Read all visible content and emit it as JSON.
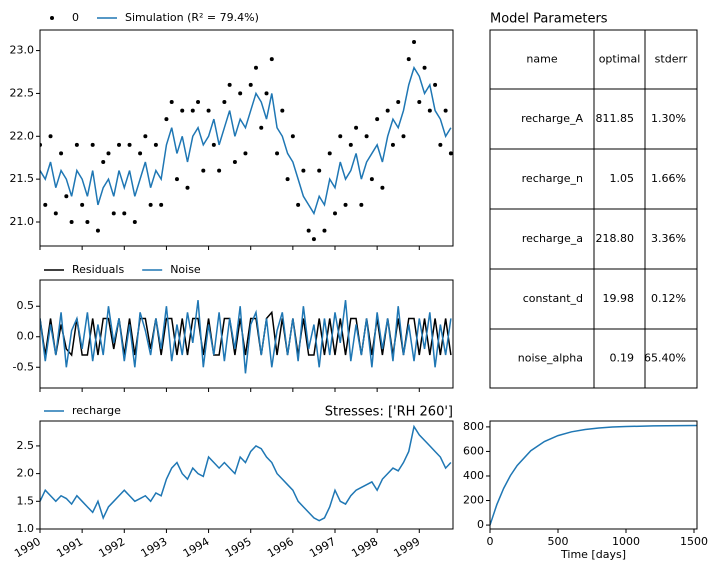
{
  "chart_data": [
    {
      "type": "line",
      "x": [
        1990,
        1990.125,
        1990.25,
        1990.375,
        1990.5,
        1990.625,
        1990.75,
        1990.875,
        1991,
        1991.125,
        1991.25,
        1991.375,
        1991.5,
        1991.625,
        1991.75,
        1991.875,
        1992,
        1992.125,
        1992.25,
        1992.375,
        1992.5,
        1992.625,
        1992.75,
        1992.875,
        1993,
        1993.125,
        1993.25,
        1993.375,
        1993.5,
        1993.625,
        1993.75,
        1993.875,
        1994,
        1994.125,
        1994.25,
        1994.375,
        1994.5,
        1994.625,
        1994.75,
        1994.875,
        1995,
        1995.125,
        1995.25,
        1995.375,
        1995.5,
        1995.625,
        1995.75,
        1995.875,
        1996,
        1996.125,
        1996.25,
        1996.375,
        1996.5,
        1996.625,
        1996.75,
        1996.875,
        1997,
        1997.125,
        1997.25,
        1997.375,
        1997.5,
        1997.625,
        1997.75,
        1997.875,
        1998,
        1998.125,
        1998.25,
        1998.375,
        1998.5,
        1998.625,
        1998.75,
        1998.875,
        1999,
        1999.125,
        1999.25,
        1999.375,
        1999.5,
        1999.625,
        1999.75
      ],
      "xlim": [
        1990,
        1999.8
      ],
      "ylim": [
        20.72,
        23.24
      ],
      "yticks": [
        {
          "value": 21,
          "label": "21.0"
        },
        21.5,
        {
          "value": 22,
          "label": "22.0"
        },
        22.5,
        {
          "value": 23,
          "label": "23.0"
        }
      ],
      "series": [
        {
          "name": "0",
          "color": "#000000",
          "style": "points",
          "values": [
            21.9,
            21.2,
            22.0,
            21.1,
            21.8,
            21.3,
            21.0,
            21.9,
            21.2,
            21.0,
            21.9,
            20.9,
            21.7,
            21.8,
            21.1,
            21.9,
            21.1,
            21.9,
            21.0,
            21.8,
            22.0,
            21.2,
            21.9,
            21.2,
            22.2,
            22.4,
            21.5,
            22.3,
            21.4,
            22.3,
            22.4,
            21.6,
            22.3,
            21.9,
            21.6,
            22.4,
            22.6,
            21.7,
            22.5,
            21.8,
            22.6,
            22.8,
            22.1,
            22.5,
            22.9,
            21.8,
            22.3,
            21.5,
            22.0,
            21.2,
            21.6,
            20.9,
            20.8,
            21.6,
            20.9,
            21.8,
            21.1,
            22.0,
            21.2,
            21.9,
            22.1,
            21.2,
            22.0,
            21.5,
            22.2,
            21.4,
            22.3,
            21.9,
            22.4,
            22.0,
            22.9,
            23.1,
            22.4,
            22.8,
            22.3,
            22.6,
            21.9,
            22.3,
            21.8
          ]
        },
        {
          "name": "Simulation (R² = 79.4%)",
          "color": "#1f77b4",
          "style": "line",
          "values": [
            21.6,
            21.5,
            21.7,
            21.4,
            21.6,
            21.5,
            21.3,
            21.6,
            21.5,
            21.3,
            21.6,
            21.2,
            21.4,
            21.5,
            21.3,
            21.6,
            21.4,
            21.6,
            21.3,
            21.5,
            21.7,
            21.4,
            21.6,
            21.5,
            21.9,
            22.1,
            21.8,
            22.0,
            21.7,
            22.0,
            22.1,
            21.9,
            22.0,
            22.2,
            21.9,
            22.1,
            22.3,
            22.0,
            22.2,
            22.1,
            22.3,
            22.5,
            22.4,
            22.2,
            22.5,
            22.1,
            22.0,
            21.8,
            21.7,
            21.5,
            21.3,
            21.2,
            21.1,
            21.3,
            21.2,
            21.5,
            21.4,
            21.7,
            21.5,
            21.6,
            21.8,
            21.5,
            21.7,
            21.8,
            21.9,
            21.7,
            22.0,
            22.2,
            22.1,
            22.3,
            22.6,
            22.8,
            22.7,
            22.5,
            22.6,
            22.3,
            22.2,
            22.0,
            22.1
          ]
        }
      ]
    },
    {
      "type": "line",
      "x": [
        1990,
        1990.125,
        1990.25,
        1990.375,
        1990.5,
        1990.625,
        1990.75,
        1990.875,
        1991,
        1991.125,
        1991.25,
        1991.375,
        1991.5,
        1991.625,
        1991.75,
        1991.875,
        1992,
        1992.125,
        1992.25,
        1992.375,
        1992.5,
        1992.625,
        1992.75,
        1992.875,
        1993,
        1993.125,
        1993.25,
        1993.375,
        1993.5,
        1993.625,
        1993.75,
        1993.875,
        1994,
        1994.125,
        1994.25,
        1994.375,
        1994.5,
        1994.625,
        1994.75,
        1994.875,
        1995,
        1995.125,
        1995.25,
        1995.375,
        1995.5,
        1995.625,
        1995.75,
        1995.875,
        1996,
        1996.125,
        1996.25,
        1996.375,
        1996.5,
        1996.625,
        1996.75,
        1996.875,
        1997,
        1997.125,
        1997.25,
        1997.375,
        1997.5,
        1997.625,
        1997.75,
        1997.875,
        1998,
        1998.125,
        1998.25,
        1998.375,
        1998.5,
        1998.625,
        1998.75,
        1998.875,
        1999,
        1999.125,
        1999.25,
        1999.375,
        1999.5,
        1999.625,
        1999.75
      ],
      "xlim": [
        1990,
        1999.8
      ],
      "ylim": [
        -0.84,
        0.93
      ],
      "yticks": [
        -0.5,
        {
          "value": 0,
          "label": "0.0"
        },
        0.5
      ],
      "series": [
        {
          "name": "Residuals",
          "color": "#000000",
          "style": "line",
          "values": [
            0.3,
            -0.3,
            0.3,
            -0.3,
            0.2,
            -0.2,
            -0.3,
            0.3,
            -0.3,
            -0.3,
            0.3,
            -0.3,
            0.3,
            0.3,
            -0.2,
            0.3,
            -0.3,
            0.3,
            -0.3,
            0.3,
            0.3,
            -0.2,
            0.3,
            -0.3,
            0.3,
            0.3,
            -0.3,
            0.3,
            -0.3,
            0.3,
            0.3,
            -0.3,
            0.3,
            -0.3,
            -0.3,
            0.3,
            0.3,
            -0.3,
            0.3,
            -0.3,
            0.3,
            0.3,
            -0.3,
            0.3,
            0.4,
            -0.3,
            0.3,
            -0.3,
            0.3,
            -0.3,
            0.3,
            -0.3,
            -0.3,
            0.3,
            -0.3,
            0.3,
            -0.3,
            0.3,
            -0.3,
            0.3,
            0.3,
            -0.3,
            0.3,
            -0.3,
            0.3,
            -0.3,
            0.3,
            -0.3,
            0.3,
            -0.3,
            0.3,
            0.3,
            -0.3,
            0.3,
            -0.3,
            0.3,
            -0.3,
            0.3,
            -0.3
          ]
        },
        {
          "name": "Noise",
          "color": "#1f77b4",
          "style": "line",
          "values": [
            0.3,
            -0.4,
            0.2,
            -0.3,
            0.4,
            -0.5,
            0.1,
            0.3,
            -0.2,
            0.4,
            -0.4,
            0.2,
            -0.3,
            0.5,
            -0.1,
            0.3,
            -0.4,
            0.2,
            -0.5,
            0.4,
            0.1,
            -0.3,
            0.3,
            -0.2,
            0.5,
            -0.4,
            0.2,
            -0.3,
            0.4,
            -0.1,
            0.6,
            -0.5,
            0.2,
            -0.3,
            0.4,
            -0.4,
            0.3,
            -0.2,
            0.5,
            -0.6,
            0.2,
            0.4,
            -0.3,
            0.3,
            -0.5,
            0.1,
            0.4,
            -0.3,
            0.3,
            -0.4,
            0.5,
            -0.2,
            0.2,
            -0.5,
            0.3,
            -0.3,
            0.4,
            -0.1,
            0.6,
            -0.4,
            0.2,
            -0.3,
            0.3,
            -0.5,
            0.4,
            -0.2,
            0.3,
            -0.4,
            0.5,
            -0.3,
            0.2,
            -0.4,
            0.3,
            -0.2,
            0.4,
            -0.5,
            0.2,
            -0.3,
            0.3
          ]
        }
      ]
    },
    {
      "type": "line",
      "title": "Stresses: ['RH 260']",
      "x": [
        1990,
        1990.125,
        1990.25,
        1990.375,
        1990.5,
        1990.625,
        1990.75,
        1990.875,
        1991,
        1991.125,
        1991.25,
        1991.375,
        1991.5,
        1991.625,
        1991.75,
        1991.875,
        1992,
        1992.125,
        1992.25,
        1992.375,
        1992.5,
        1992.625,
        1992.75,
        1992.875,
        1993,
        1993.125,
        1993.25,
        1993.375,
        1993.5,
        1993.625,
        1993.75,
        1993.875,
        1994,
        1994.125,
        1994.25,
        1994.375,
        1994.5,
        1994.625,
        1994.75,
        1994.875,
        1995,
        1995.125,
        1995.25,
        1995.375,
        1995.5,
        1995.625,
        1995.75,
        1995.875,
        1996,
        1996.125,
        1996.25,
        1996.375,
        1996.5,
        1996.625,
        1996.75,
        1996.875,
        1997,
        1997.125,
        1997.25,
        1997.375,
        1997.5,
        1997.625,
        1997.75,
        1997.875,
        1998,
        1998.125,
        1998.25,
        1998.375,
        1998.5,
        1998.625,
        1998.75,
        1998.875,
        1999,
        1999.125,
        1999.25,
        1999.375,
        1999.5,
        1999.625,
        1999.75
      ],
      "xlim": [
        1990,
        1999.8
      ],
      "xticks": [
        1990,
        1991,
        1992,
        1993,
        1994,
        1995,
        1996,
        1997,
        1998,
        1999
      ],
      "xtick_rotation": 30,
      "ylim": [
        1.0,
        2.95
      ],
      "yticks": [
        {
          "value": 1,
          "label": "1.0"
        },
        1.5,
        {
          "value": 2,
          "label": "2.0"
        },
        2.5
      ],
      "series": [
        {
          "name": "recharge",
          "color": "#1f77b4",
          "style": "line",
          "values": [
            1.5,
            1.7,
            1.6,
            1.5,
            1.6,
            1.55,
            1.45,
            1.6,
            1.5,
            1.4,
            1.3,
            1.5,
            1.2,
            1.4,
            1.5,
            1.6,
            1.7,
            1.6,
            1.5,
            1.55,
            1.6,
            1.5,
            1.65,
            1.6,
            1.9,
            2.1,
            2.2,
            2.0,
            1.9,
            2.1,
            2.0,
            1.95,
            2.3,
            2.2,
            2.1,
            2.2,
            2.1,
            2.0,
            2.3,
            2.2,
            2.4,
            2.5,
            2.45,
            2.3,
            2.2,
            2.0,
            1.9,
            1.8,
            1.7,
            1.5,
            1.4,
            1.3,
            1.2,
            1.15,
            1.2,
            1.4,
            1.7,
            1.5,
            1.45,
            1.6,
            1.7,
            1.75,
            1.8,
            1.85,
            1.7,
            1.9,
            2.0,
            2.1,
            2.05,
            2.2,
            2.4,
            2.85,
            2.7,
            2.6,
            2.5,
            2.4,
            2.3,
            2.1,
            2.2
          ]
        }
      ]
    },
    {
      "type": "line",
      "xlabel": "Time [days]",
      "x": [
        0,
        50,
        100,
        150,
        200,
        300,
        400,
        500,
        600,
        700,
        800,
        900,
        1000,
        1200,
        1400,
        1522
      ],
      "xlim": [
        0,
        1522
      ],
      "xticks": [
        0,
        500,
        1000,
        1500
      ],
      "ylim": [
        -32,
        848
      ],
      "yticks": [
        0,
        200,
        400,
        600,
        800
      ],
      "series": [
        {
          "name": "recharge_step",
          "color": "#1f77b4",
          "style": "line",
          "legend": false,
          "values": [
            0,
            166,
            298,
            403,
            486,
            606,
            681,
            729,
            760,
            779,
            791,
            799,
            803,
            808,
            810,
            811
          ]
        }
      ]
    }
  ],
  "table": {
    "title": "Model Parameters",
    "columns": [
      "name",
      "optimal",
      "stderr"
    ],
    "rows": [
      [
        "recharge_A",
        "811.85",
        "1.30%"
      ],
      [
        "recharge_n",
        "1.05",
        "1.66%"
      ],
      [
        "recharge_a",
        "218.80",
        "3.36%"
      ],
      [
        "constant_d",
        "19.98",
        "0.12%"
      ],
      [
        "noise_alpha",
        "0.19",
        "65.40%"
      ]
    ]
  }
}
